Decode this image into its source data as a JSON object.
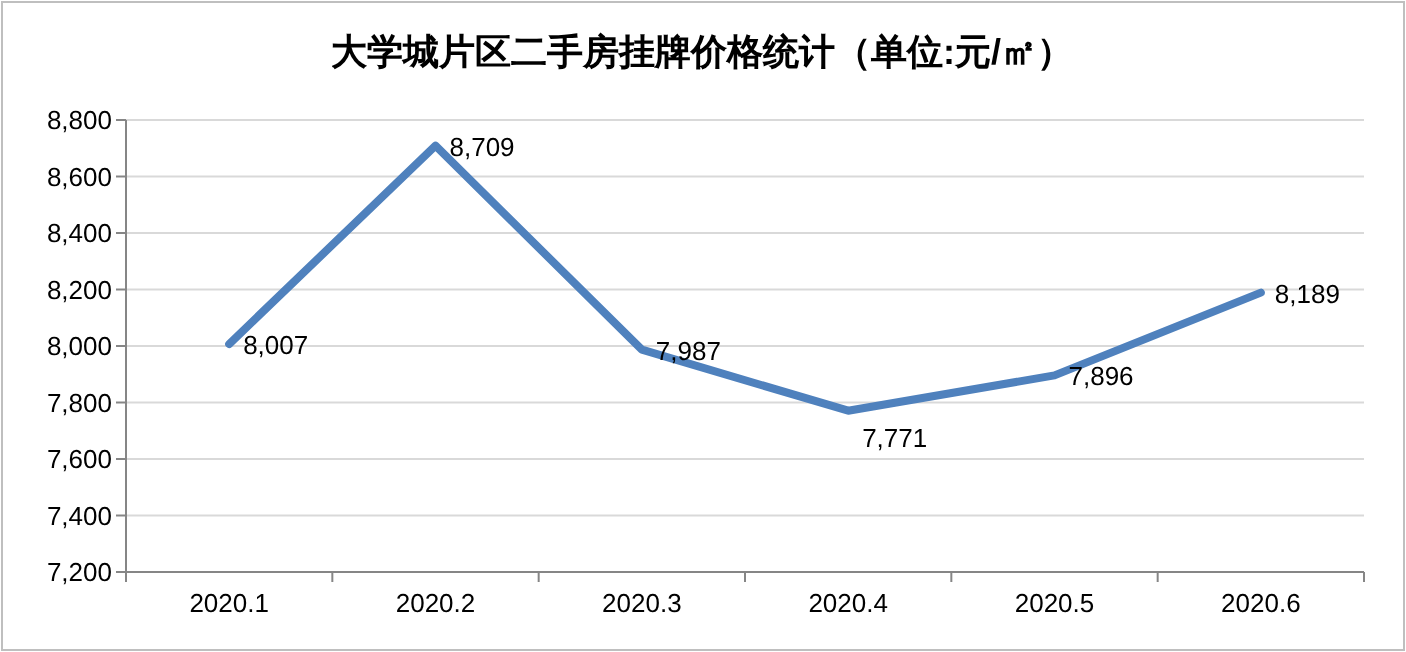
{
  "chart_data": {
    "type": "line",
    "title": "大学城片区二手房挂牌价格统计（单位:元/㎡）",
    "categories": [
      "2020.1",
      "2020.2",
      "2020.3",
      "2020.4",
      "2020.5",
      "2020.6"
    ],
    "series": [
      {
        "color": "#4f81bd",
        "values": [
          8007,
          8709,
          7987,
          7771,
          7896,
          8189
        ],
        "value_labels": [
          "8,007",
          "8,709",
          "7,987",
          "7,771",
          "7,896",
          "8,189"
        ]
      }
    ],
    "ylim": [
      7200,
      8800
    ],
    "yticks": [
      {
        "value": 7200,
        "label": "7,200"
      },
      {
        "value": 7400,
        "label": "7,400"
      },
      {
        "value": 7600,
        "label": "7,600"
      },
      {
        "value": 7800,
        "label": "7,800"
      },
      {
        "value": 8000,
        "label": "8,000"
      },
      {
        "value": 8200,
        "label": "8,200"
      },
      {
        "value": 8400,
        "label": "8,400"
      },
      {
        "value": 8600,
        "label": "8,600"
      },
      {
        "value": 8800,
        "label": "8,800"
      }
    ],
    "grid": "y",
    "marker": "none",
    "line_style": "solid"
  }
}
